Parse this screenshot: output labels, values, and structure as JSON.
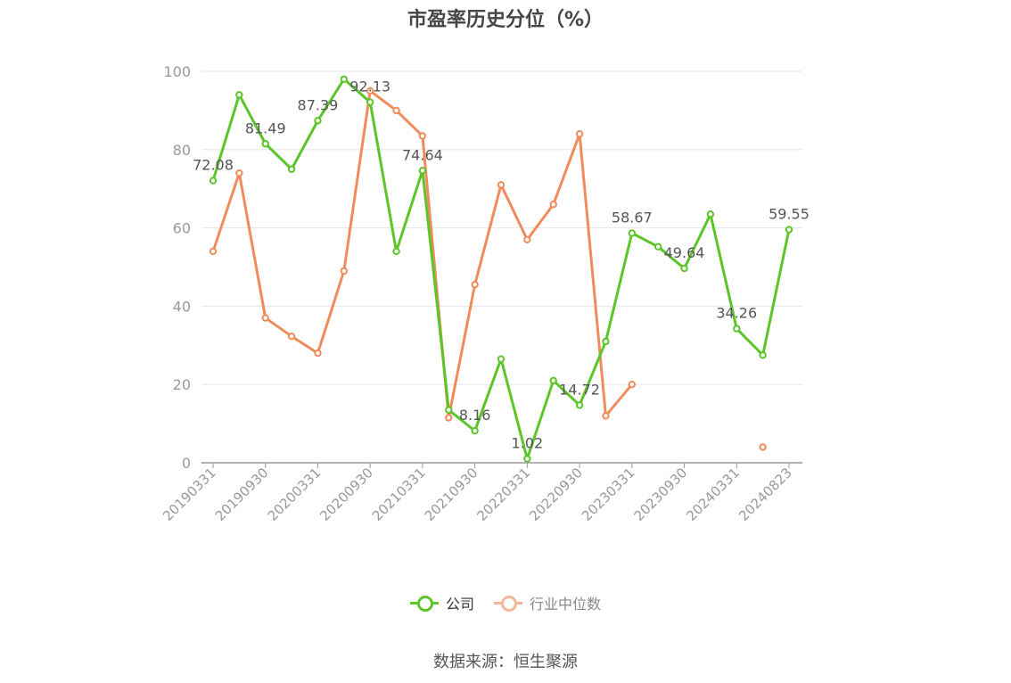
{
  "title": "市盈率历史分位（%）",
  "source": "数据来源：恒生聚源",
  "colors": {
    "company": "#5cc52a",
    "industry": "#f08c5c",
    "axis": "#999999",
    "grid": "#e6e6ee",
    "label": "#555555"
  },
  "legend": {
    "company": "公司",
    "industry": "行业中位数"
  },
  "chart_data": {
    "type": "line",
    "title": "市盈率历史分位（%）",
    "ylim": [
      0,
      100
    ],
    "yticks": [
      0,
      20,
      40,
      60,
      80,
      100
    ],
    "grid": true,
    "legend_position": "bottom-center",
    "x": [
      "20190331",
      "20190630",
      "20190930",
      "20191231",
      "20200331",
      "20200630",
      "20200930",
      "20201231",
      "20210331",
      "20210630",
      "20210930",
      "20211231",
      "20220331",
      "20220630",
      "20220930",
      "20221231",
      "20230331",
      "20230630",
      "20230930",
      "20231231",
      "20240331",
      "20240630",
      "20240823"
    ],
    "xtick_labels": [
      "20190331",
      "20190930",
      "20200331",
      "20200930",
      "20210331",
      "20210930",
      "20220331",
      "20220930",
      "20230331",
      "20230930",
      "20240331",
      "20240823"
    ],
    "series": [
      {
        "name": "公司",
        "values": [
          72.08,
          94,
          81.49,
          75,
          87.39,
          98,
          92.13,
          54,
          74.64,
          13.5,
          8.16,
          26.5,
          1.02,
          21,
          14.72,
          31,
          58.67,
          55.2,
          49.64,
          63.5,
          34.26,
          27.5,
          59.55
        ]
      },
      {
        "name": "行业中位数",
        "values": [
          54,
          74,
          37,
          32.3,
          28,
          49,
          95,
          90,
          83.5,
          11.5,
          45.5,
          71,
          57,
          66,
          84,
          12,
          20,
          null,
          null,
          null,
          null,
          4,
          null
        ]
      }
    ],
    "data_labels": [
      {
        "series": 0,
        "index": 0,
        "text": "72.08"
      },
      {
        "series": 0,
        "index": 2,
        "text": "81.49"
      },
      {
        "series": 0,
        "index": 4,
        "text": "87.39"
      },
      {
        "series": 0,
        "index": 6,
        "text": "92.13"
      },
      {
        "series": 0,
        "index": 8,
        "text": "74.64"
      },
      {
        "series": 0,
        "index": 10,
        "text": "8.16"
      },
      {
        "series": 0,
        "index": 12,
        "text": "1.02"
      },
      {
        "series": 0,
        "index": 14,
        "text": "14.72"
      },
      {
        "series": 0,
        "index": 16,
        "text": "58.67"
      },
      {
        "series": 0,
        "index": 18,
        "text": "49.64"
      },
      {
        "series": 0,
        "index": 20,
        "text": "34.26"
      },
      {
        "series": 0,
        "index": 22,
        "text": "59.55"
      }
    ]
  }
}
